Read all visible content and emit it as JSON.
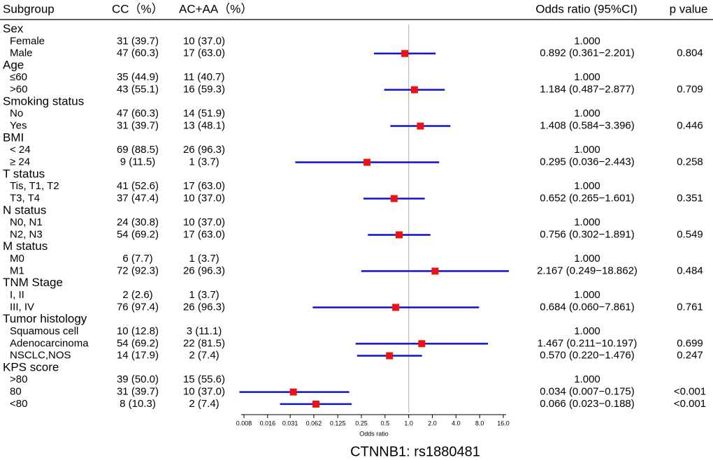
{
  "chart_data": {
    "type": "forest",
    "title": "CTNNB1: rs1880481",
    "x_label": "Odds ratio",
    "headers": [
      "Subgroup",
      "CC（%）",
      "AC+AA（%）",
      "Odds ratio (95%CI)",
      "p value"
    ],
    "log_scale": true,
    "xlim": [
      0.008,
      16
    ],
    "xticks": [
      0.008,
      0.016,
      0.031,
      0.062,
      0.125,
      0.25,
      0.5,
      {
        "value": 1,
        "label": "1.0"
      },
      {
        "value": 2,
        "label": "2.0"
      },
      {
        "value": 4,
        "label": "4.0"
      },
      {
        "value": 8,
        "label": "8.0"
      },
      {
        "value": 16,
        "label": "16.0"
      }
    ],
    "reference_line": 1,
    "marker_color": "#ee1111",
    "ci_color": "#0a14d0",
    "rows": [
      {
        "label": "Sex"
      },
      {
        "label": "Female",
        "cc": "31 (39.7)",
        "acaa": "10 (37.0)",
        "or_label": "1.000"
      },
      {
        "label": "Male",
        "cc": "47 (60.3)",
        "acaa": "17 (63.0)",
        "or_label": "0.892 (0.361−2.201)",
        "p": 0.804,
        "estimate": 0.892,
        "lower": 0.361,
        "upper": 2.201
      },
      {
        "label": "Age"
      },
      {
        "label": "≤60",
        "cc": "35 (44.9)",
        "acaa": "11 (40.7)",
        "or_label": "1.000"
      },
      {
        "label": ">60",
        "cc": "43 (55.1)",
        "acaa": "16 (59.3)",
        "or_label": "1.184 (0.487−2.877)",
        "p": 0.709,
        "estimate": 1.184,
        "lower": 0.487,
        "upper": 2.877
      },
      {
        "label": "Smoking status"
      },
      {
        "label": "No",
        "cc": "47 (60.3)",
        "acaa": "14 (51.9)",
        "or_label": "1.000"
      },
      {
        "label": "Yes",
        "cc": "31 (39.7)",
        "acaa": "13 (48.1)",
        "or_label": "1.408 (0.584−3.396)",
        "p": 0.446,
        "estimate": 1.408,
        "lower": 0.584,
        "upper": 3.396
      },
      {
        "label": "BMI"
      },
      {
        "label": "< 24",
        "cc": "69 (88.5)",
        "acaa": "26 (96.3)",
        "or_label": "1.000"
      },
      {
        "label": "≥ 24",
        "cc": "9 (11.5)",
        "acaa": "1 (3.7)",
        "or_label": "0.295 (0.036−2.443)",
        "p": 0.258,
        "estimate": 0.295,
        "lower": 0.036,
        "upper": 2.443
      },
      {
        "label": "T status"
      },
      {
        "label": "Tis, T1, T2",
        "cc": "41 (52.6)",
        "acaa": "17 (63.0)",
        "or_label": "1.000"
      },
      {
        "label": "T3, T4",
        "cc": "37 (47.4)",
        "acaa": "10 (37.0)",
        "or_label": "0.652 (0.265−1.601)",
        "p": 0.351,
        "estimate": 0.652,
        "lower": 0.265,
        "upper": 1.601
      },
      {
        "label": "N status"
      },
      {
        "label": "N0, N1",
        "cc": "24 (30.8)",
        "acaa": "10 (37.0)",
        "or_label": "1.000"
      },
      {
        "label": "N2, N3",
        "cc": "54 (69.2)",
        "acaa": "17 (63.0)",
        "or_label": "0.756 (0.302−1.891)",
        "p": 0.549,
        "estimate": 0.756,
        "lower": 0.302,
        "upper": 1.891
      },
      {
        "label": "M status"
      },
      {
        "label": "M0",
        "cc": "6 (7.7)",
        "acaa": "1 (3.7)",
        "or_label": "1.000"
      },
      {
        "label": "M1",
        "cc": "72 (92.3)",
        "acaa": "26 (96.3)",
        "or_label": "2.167 (0.249−18.862)",
        "p": 0.484,
        "estimate": 2.167,
        "lower": 0.249,
        "upper": 18.862
      },
      {
        "label": "TNM Stage"
      },
      {
        "label": "I, II",
        "cc": "2 (2.6)",
        "acaa": "1 (3.7)",
        "or_label": "1.000"
      },
      {
        "label": "III, IV",
        "cc": "76 (97.4)",
        "acaa": "26 (96.3)",
        "or_label": "0.684 (0.060−7.861)",
        "p": 0.761,
        "estimate": 0.684,
        "lower": 0.06,
        "upper": 7.861
      },
      {
        "label": "Tumor histology"
      },
      {
        "label": "Squamous cell",
        "cc": "10 (12.8)",
        "acaa": "3 (11.1)",
        "or_label": "1.000"
      },
      {
        "label": "Adenocarcinoma",
        "cc": "54 (69.2)",
        "acaa": "22 (81.5)",
        "or_label": "1.467 (0.211−10.197)",
        "p": 0.699,
        "estimate": 1.467,
        "lower": 0.211,
        "upper": 10.197
      },
      {
        "label": "NSCLC,NOS",
        "cc": "14 (17.9)",
        "acaa": "2 (7.4)",
        "or_label": "0.570 (0.220−1.476)",
        "p": 0.247,
        "estimate": 0.57,
        "lower": 0.22,
        "upper": 1.476
      },
      {
        "label": "KPS score"
      },
      {
        "label": ">80",
        "cc": "39 (50.0)",
        "acaa": "15 (55.6)",
        "or_label": "1.000"
      },
      {
        "label": "80",
        "cc": "31 (39.7)",
        "acaa": "10 (37.0)",
        "or_label": "0.034 (0.007−0.175)",
        "p": "<0.001",
        "estimate": 0.034,
        "lower": 0.007,
        "upper": 0.175
      },
      {
        "label": "<80",
        "cc": "8 (10.3)",
        "acaa": "2 (7.4)",
        "or_label": "0.066 (0.023−0.188)",
        "p": "<0.001",
        "estimate": 0.066,
        "lower": 0.023,
        "upper": 0.188
      }
    ]
  }
}
